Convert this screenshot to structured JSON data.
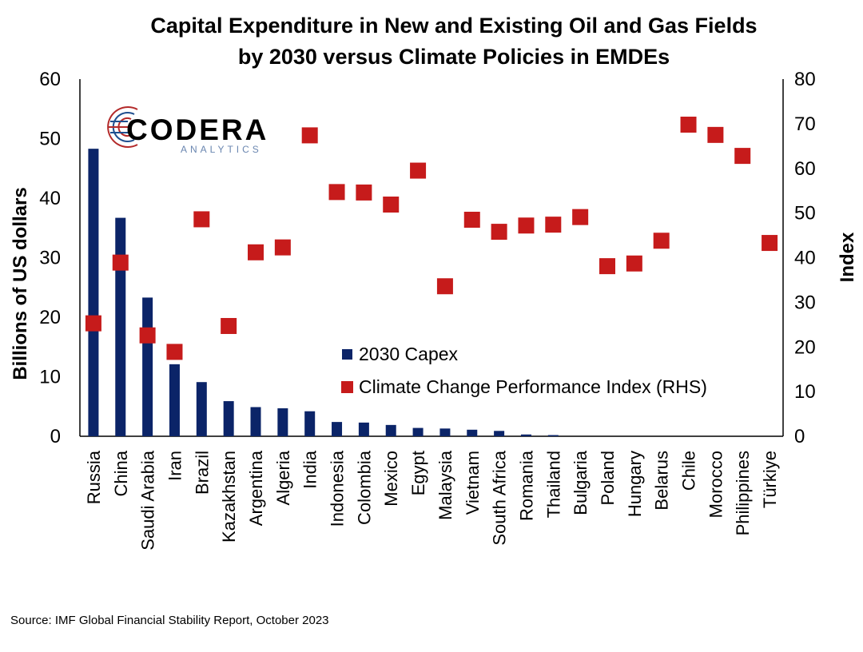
{
  "chart_data": {
    "type": "bar",
    "title_lines": [
      "Capital Expenditure in New and Existing Oil and Gas Fields",
      "by 2030 versus Climate Policies in EMDEs"
    ],
    "categories": [
      "Russia",
      "China",
      "Saudi Arabia",
      "Iran",
      "Brazil",
      "Kazakhstan",
      "Argentina",
      "Algeria",
      "India",
      "Indonesia",
      "Colombia",
      "Mexico",
      "Egypt",
      "Malaysia",
      "Vietnam",
      "South Africa",
      "Romania",
      "Thailand",
      "Bulgaria",
      "Poland",
      "Hungary",
      "Belarus",
      "Chile",
      "Morocco",
      "Philippines",
      "Türkiye"
    ],
    "series": [
      {
        "name": "2030 Capex",
        "kind": "bar",
        "axis": "left",
        "color": "#0b2468",
        "values": [
          48.3,
          36.7,
          23.3,
          12.1,
          9.1,
          5.9,
          4.9,
          4.7,
          4.2,
          2.4,
          2.3,
          1.9,
          1.4,
          1.3,
          1.1,
          0.9,
          0.3,
          0.2,
          0,
          0,
          0,
          0,
          0,
          0,
          0,
          0
        ]
      },
      {
        "name": "Climate Change Performance Index (RHS)",
        "kind": "marker",
        "axis": "right",
        "color": "#c61b1b",
        "values": [
          25.3,
          38.9,
          22.6,
          18.9,
          48.6,
          24.7,
          41.2,
          42.3,
          67.4,
          54.7,
          54.6,
          51.9,
          59.5,
          33.6,
          48.5,
          45.8,
          47.2,
          47.4,
          49.1,
          38.1,
          38.7,
          43.8,
          69.8,
          67.5,
          62.8,
          43.3
        ]
      }
    ],
    "y_left": {
      "label": "Billions of US dollars",
      "ylim": [
        0,
        60
      ],
      "ticks": [
        "0",
        "10",
        "20",
        "30",
        "40",
        "50",
        "60"
      ]
    },
    "y_right": {
      "label": "Index",
      "ylim": [
        0,
        80
      ],
      "ticks": [
        "0",
        "10",
        "20",
        "30",
        "40",
        "50",
        "60",
        "70",
        "80"
      ]
    },
    "grid": false,
    "legend_position": "center"
  },
  "logo": {
    "name": "CODERA",
    "sub": "ANALYTICS"
  },
  "source": "Source: IMF Global Financial Stability Report, October 2023"
}
